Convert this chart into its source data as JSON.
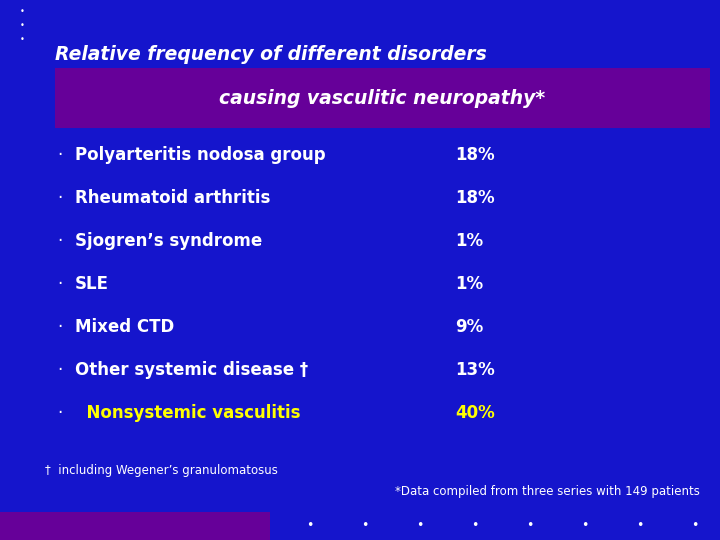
{
  "bg_color": "#1515cc",
  "header_bg_color": "#660099",
  "title_line1": "Relative frequency of different disorders",
  "title_line2": "causing vasculitic neuropathy*",
  "title_line1_color": "#ffffff",
  "title_line2_color": "#ffffff",
  "bullet_color": "#ffffff",
  "bullet_char": "·",
  "items": [
    {
      "label": "Polyarteritis nodosa group",
      "value": "18%",
      "label_color": "#ffffff",
      "value_color": "#ffffff"
    },
    {
      "label": "Rheumatoid arthritis",
      "value": "18%",
      "label_color": "#ffffff",
      "value_color": "#ffffff"
    },
    {
      "label": "Sjogren’s syndrome",
      "value": "1%",
      "label_color": "#ffffff",
      "value_color": "#ffffff"
    },
    {
      "label": "SLE",
      "value": "1%",
      "label_color": "#ffffff",
      "value_color": "#ffffff"
    },
    {
      "label": "Mixed CTD",
      "value": "9%",
      "label_color": "#ffffff",
      "value_color": "#ffffff"
    },
    {
      "label": "Other systemic disease †",
      "value": "13%",
      "label_color": "#ffffff",
      "value_color": "#ffffff"
    },
    {
      "label": "  Nonsystemic vasculitis",
      "value": "40%",
      "label_color": "#ffff00",
      "value_color": "#ffff00"
    }
  ],
  "footnote1": "†  including Wegener’s granulomatosus",
  "footnote1_color": "#ffffff",
  "footnote2": "*Data compiled from three series with 149 patients",
  "footnote2_color": "#ffffff",
  "top_bullets_color": "#ffffff",
  "bottom_bar_color": "#660099",
  "bottom_dots_color": "#ffffff"
}
